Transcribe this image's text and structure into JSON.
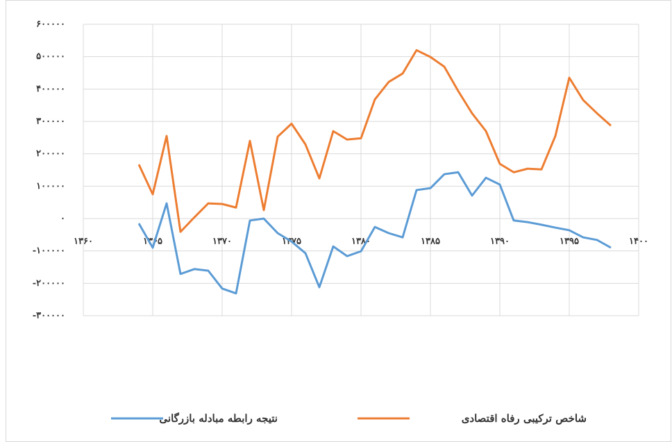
{
  "chart_data": {
    "type": "line",
    "x": [
      1364,
      1365,
      1366,
      1367,
      1368,
      1369,
      1370,
      1371,
      1372,
      1373,
      1374,
      1375,
      1376,
      1377,
      1378,
      1379,
      1380,
      1381,
      1382,
      1383,
      1384,
      1385,
      1386,
      1387,
      1388,
      1389,
      1390,
      1391,
      1392,
      1393,
      1394,
      1395,
      1396,
      1397,
      1398
    ],
    "series": [
      {
        "name": "شاخص ترکیبی رفاه اقتصادی",
        "color": "#ed7d31",
        "values": [
          167000,
          75000,
          255000,
          -41000,
          4000,
          47000,
          45000,
          34000,
          240000,
          26000,
          253000,
          293000,
          229000,
          124000,
          270000,
          244000,
          248000,
          368000,
          422000,
          448000,
          520000,
          499000,
          469000,
          394000,
          325000,
          270000,
          169000,
          143000,
          154000,
          152000,
          255000,
          435000,
          366000,
          325000,
          287000
        ]
      },
      {
        "name": "نتیجه رابطه مبادله بازرگانی",
        "color": "#5b9bd5",
        "values": [
          -15000,
          -90000,
          47000,
          -171000,
          -156000,
          -161000,
          -216000,
          -231000,
          -6000,
          0,
          -45000,
          -71000,
          -107000,
          -212000,
          -86000,
          -116000,
          -101000,
          -26000,
          -45000,
          -58000,
          88000,
          94000,
          137000,
          143000,
          71000,
          126000,
          105000,
          -6000,
          -11000,
          -19000,
          -28000,
          -36000,
          -58000,
          -66000,
          -90000
        ]
      }
    ],
    "xlim": [
      1360,
      1400
    ],
    "xticks": [
      {
        "value": 1360,
        "label": "۱۳۶۰"
      },
      {
        "value": 1365,
        "label": "۱۳۶۵"
      },
      {
        "value": 1370,
        "label": "۱۳۷۰"
      },
      {
        "value": 1375,
        "label": "۱۳۷۵"
      },
      {
        "value": 1380,
        "label": "۱۳۸۰"
      },
      {
        "value": 1385,
        "label": "۱۳۸۵"
      },
      {
        "value": 1390,
        "label": "۱۳۹۰"
      },
      {
        "value": 1395,
        "label": "۱۳۹۵"
      },
      {
        "value": 1400,
        "label": "۱۴۰۰"
      }
    ],
    "ylim": [
      -300000,
      600000
    ],
    "yticks": [
      {
        "value": 600000,
        "label": "۶۰۰۰۰۰"
      },
      {
        "value": 500000,
        "label": "۵۰۰۰۰۰"
      },
      {
        "value": 400000,
        "label": "۴۰۰۰۰۰"
      },
      {
        "value": 300000,
        "label": "۳۰۰۰۰۰"
      },
      {
        "value": 200000,
        "label": "۲۰۰۰۰۰"
      },
      {
        "value": 100000,
        "label": "۱۰۰۰۰۰"
      },
      {
        "value": 0,
        "label": "۰"
      },
      {
        "value": -100000,
        "label": "-۱۰۰۰۰۰"
      },
      {
        "value": -200000,
        "label": "-۲۰۰۰۰۰"
      },
      {
        "value": -300000,
        "label": "-۳۰۰۰۰۰"
      }
    ],
    "grid": true
  }
}
